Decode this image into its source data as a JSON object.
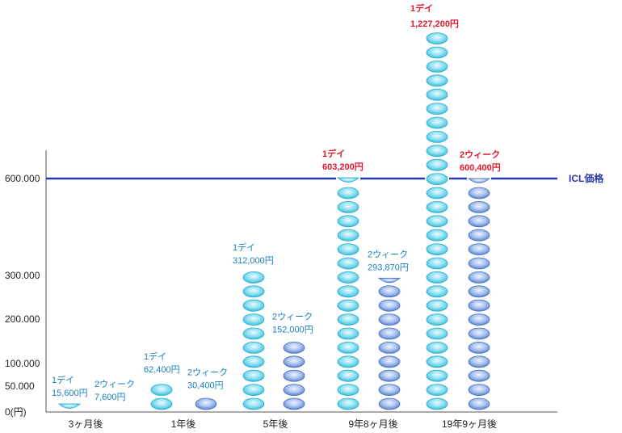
{
  "chart_data": {
    "type": "bar",
    "categories": [
      "3ヶ月後",
      "1年後",
      "5年後",
      "9年8ヶ月後",
      "19年9ヶ月後"
    ],
    "series": [
      {
        "name": "1デイ",
        "values": [
          15600,
          62400,
          312000,
          603200,
          1227200
        ],
        "labels": [
          "15,600円",
          "62,400円",
          "312,000円",
          "603,200円",
          "1,227,200円"
        ]
      },
      {
        "name": "2ウィーク",
        "values": [
          7600,
          30400,
          152000,
          293870,
          600400
        ],
        "labels": [
          "7,600円",
          "30,400円",
          "152,000円",
          "293,870円",
          "600,400円"
        ]
      }
    ],
    "y_ticks": [
      {
        "value": 0,
        "label": "0(円)"
      },
      {
        "value": 50000,
        "label": "50.000"
      },
      {
        "value": 100000,
        "label": "100.000"
      },
      {
        "value": 200000,
        "label": "200.000"
      },
      {
        "value": 300000,
        "label": "300.000"
      },
      {
        "value": 600000,
        "label": "600.000"
      }
    ],
    "reference_line": {
      "value": 600000,
      "label": "ICL価格",
      "color": "#2b3aa8"
    },
    "colors": {
      "day_fill": "#8fe0f2",
      "day_stroke": "#27b0d0",
      "week_fill": "#a9c2ee",
      "week_stroke": "#4a74c4",
      "label_normal": "#1a7fc0",
      "label_highlight": "#e0182d",
      "axis": "#555555"
    }
  }
}
